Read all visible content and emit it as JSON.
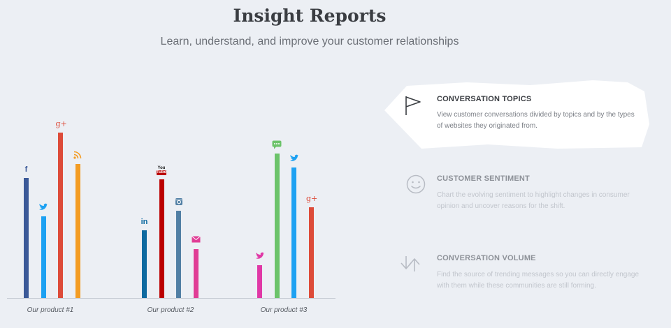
{
  "header": {
    "title": "Insight Reports",
    "subtitle": "Learn, understand, and improve your customer relationships"
  },
  "chart_data": {
    "type": "bar",
    "categories": [
      "Our product #1",
      "Our product #2",
      "Our product #3"
    ],
    "ylim": [
      0,
      100
    ],
    "groups": [
      {
        "category": "Our product #1",
        "bars": [
          {
            "name": "facebook",
            "icon": "f",
            "color": "#3b5998",
            "value": 69
          },
          {
            "name": "twitter",
            "icon": "twitter",
            "color": "#1da1f2",
            "value": 47
          },
          {
            "name": "google-plus",
            "icon": "g+",
            "color": "#dd4b39",
            "value": 95
          },
          {
            "name": "rss",
            "icon": "rss",
            "color": "#f39c23",
            "value": 77
          }
        ]
      },
      {
        "category": "Our product #2",
        "bars": [
          {
            "name": "linkedin",
            "icon": "in",
            "color": "#0e6aa0",
            "value": 39
          },
          {
            "name": "youtube",
            "icon": "You Tube",
            "color": "#bb0000",
            "value": 68
          },
          {
            "name": "instagram",
            "icon": "instagram",
            "color": "#517fa4",
            "value": 50
          },
          {
            "name": "email",
            "icon": "email",
            "color": "#e03d95",
            "value": 28
          }
        ]
      },
      {
        "category": "Our product #3",
        "bars": [
          {
            "name": "bird",
            "icon": "bird",
            "color": "#e038a6",
            "value": 19
          },
          {
            "name": "chat",
            "icon": "chat",
            "color": "#6cc36a",
            "value": 83
          },
          {
            "name": "twitter",
            "icon": "twitter",
            "color": "#1da1f2",
            "value": 75
          },
          {
            "name": "google-plus",
            "icon": "g+",
            "color": "#dd4b39",
            "value": 52
          }
        ]
      }
    ]
  },
  "features": [
    {
      "title": "CONVERSATION TOPICS",
      "description": "View customer conversations divided by topics and by the types of websites they originated from.",
      "icon": "flag-icon",
      "active": true
    },
    {
      "title": "CUSTOMER SENTIMENT",
      "description": "Chart the evolving sentiment to highlight changes in consumer opinion and uncover reasons for the shift.",
      "icon": "smiley-icon",
      "active": false
    },
    {
      "title": "CONVERSATION VOLUME",
      "description": "Find the source of trending messages so you can directly engage with them while these communities are still forming.",
      "icon": "up-down-arrows-icon",
      "active": false
    }
  ]
}
